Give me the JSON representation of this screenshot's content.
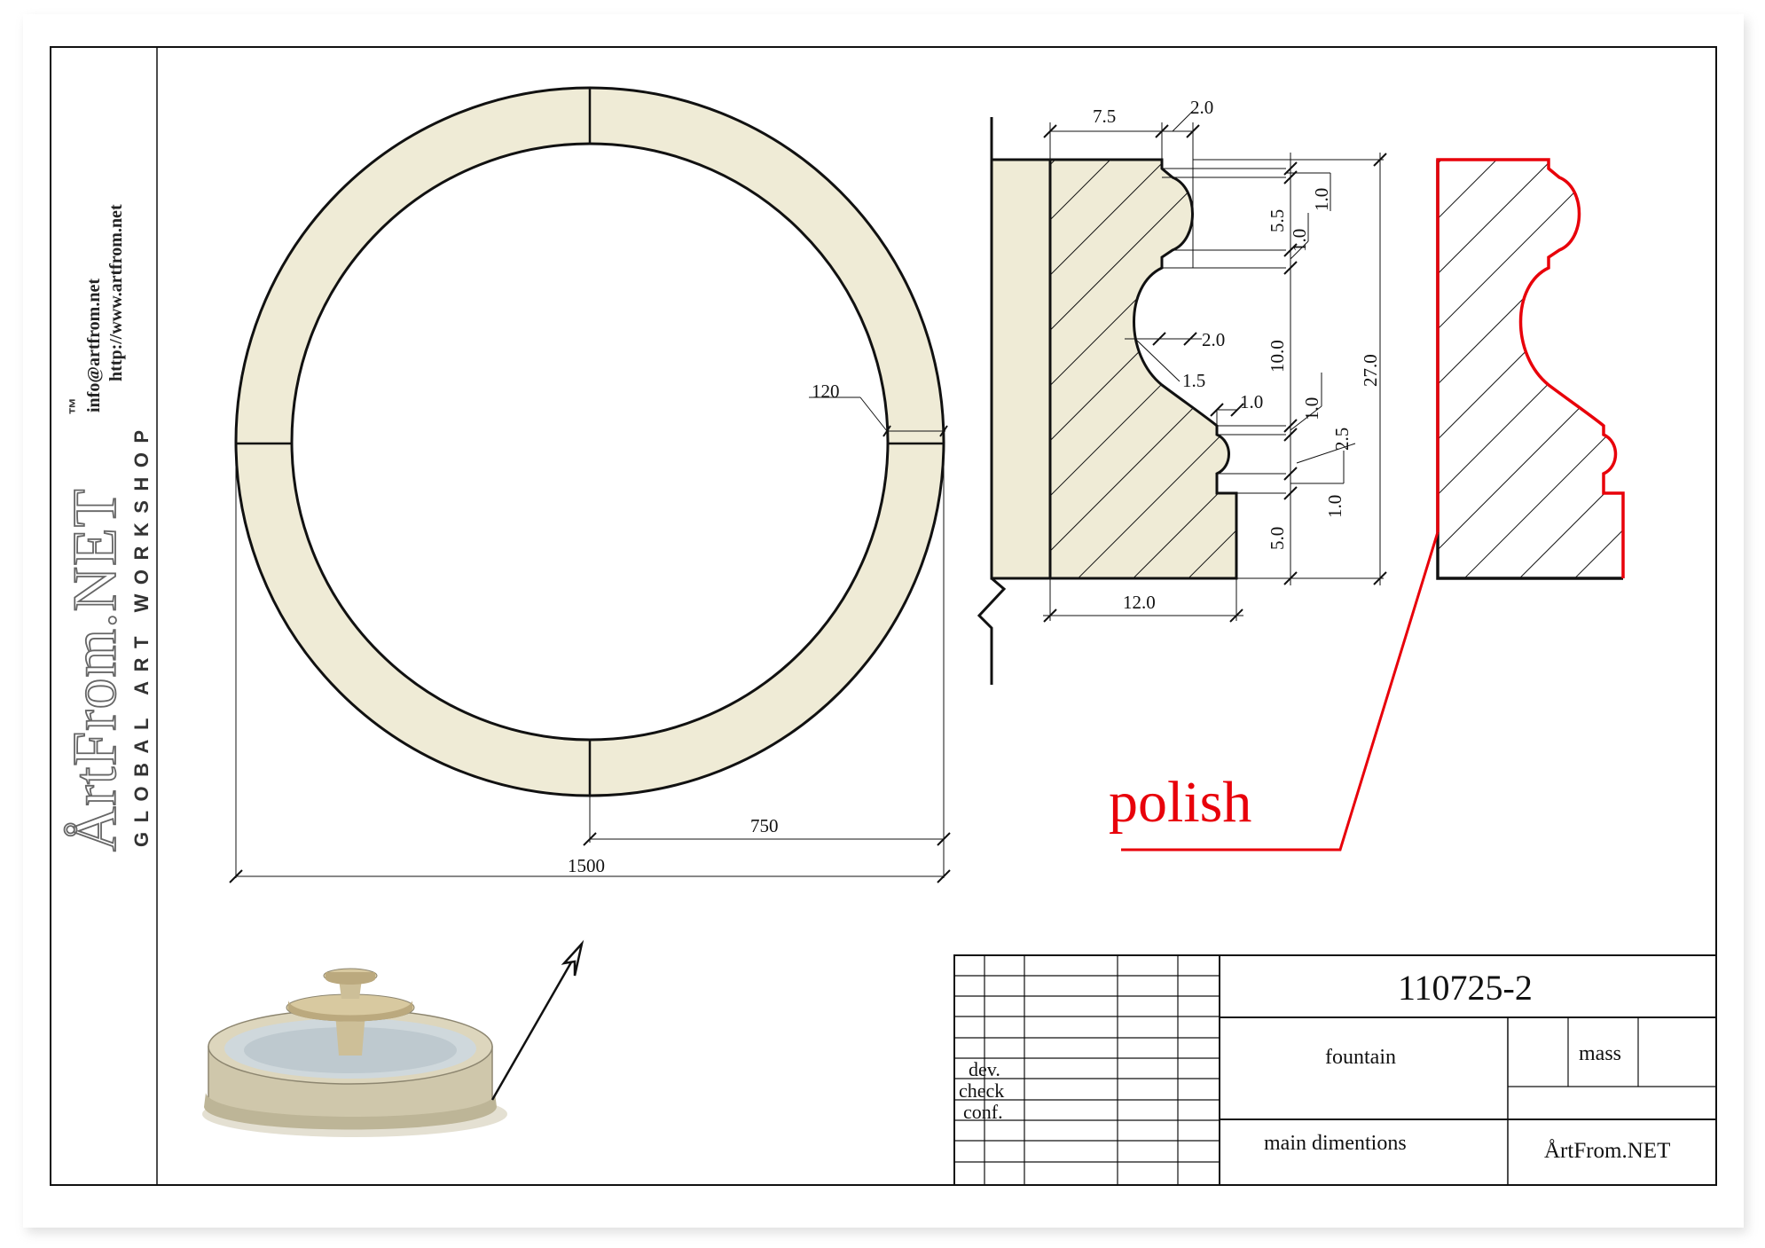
{
  "brand": {
    "name": "ÅrtFrom.NET",
    "trademark": "™",
    "tagline": "GLOBAL ART WORKSHOP",
    "email": "info@artfrom.net",
    "website": "http://www.artfrom.net"
  },
  "plan": {
    "ring_width": "120",
    "radius": "750",
    "diameter": "1500"
  },
  "profile": {
    "top_width": "7.5",
    "top_offset": "2.0",
    "seg_a": "1.0",
    "seg_b": "5.5",
    "seg_c": "1.0",
    "cove_depth": "2.0",
    "cove_step": "1.5",
    "cove_height": "10.0",
    "bead_depth": "1.0",
    "seg_d": "1.0",
    "seg_e": "2.5",
    "seg_f": "1.0",
    "base_height": "5.0",
    "total_height": "27.0",
    "base_width": "12.0"
  },
  "callout": {
    "label": "polish",
    "color": "#e8000a"
  },
  "colors": {
    "stone": "#efebd6",
    "line": "#111111"
  },
  "title_block": {
    "drawing_number": "110725-2",
    "item": "fountain",
    "mass_label": "mass",
    "description": "main dimentions",
    "company": "ÅrtFrom.NET",
    "roles": [
      "dev.",
      "check",
      "conf."
    ]
  }
}
